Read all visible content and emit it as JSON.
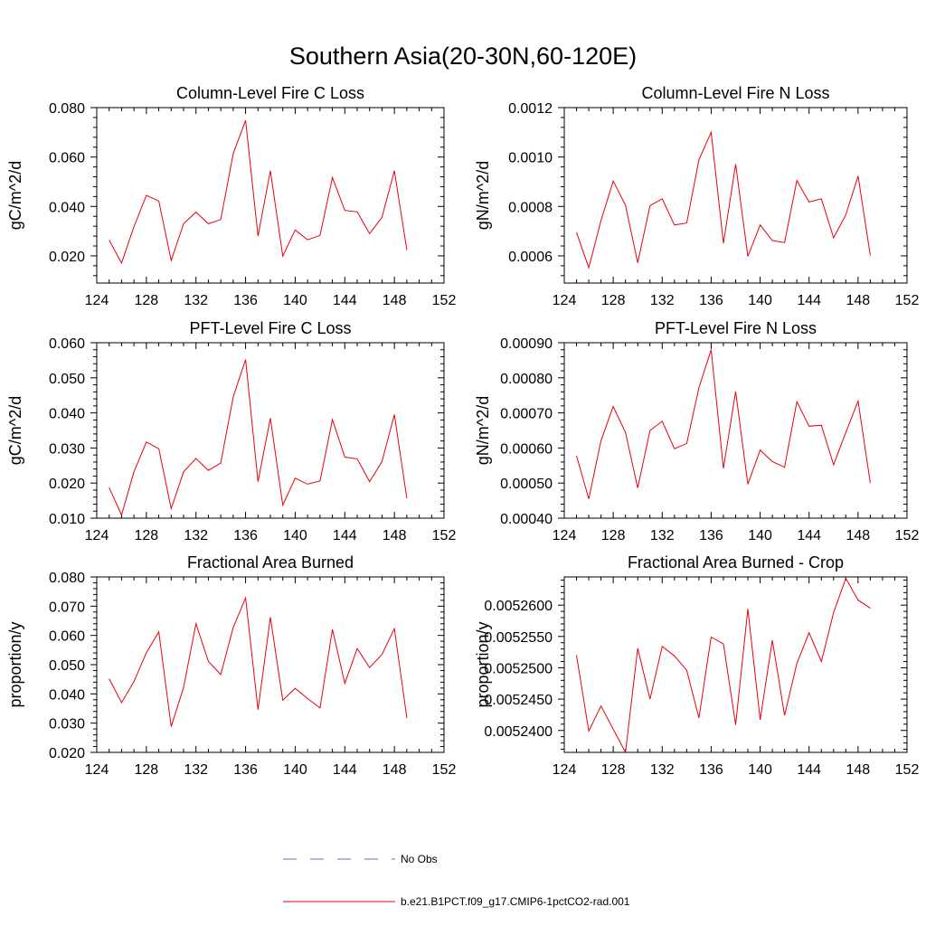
{
  "figure": {
    "title": "Southern Asia(20-30N,60-120E)"
  },
  "legend": {
    "placement": "bottom-center",
    "entries": [
      {
        "label": "No Obs",
        "color": "#6a6ad0",
        "dash": true
      },
      {
        "label": "b.e21.B1PCT.f09_g17.CMIP6-1pctCO2-rad.001",
        "color": "#e8000b",
        "dash": false
      }
    ]
  },
  "chart_data": [
    {
      "type": "line",
      "title": "Column-Level Fire C Loss",
      "xlabel": "",
      "ylabel": "gC/m^2/d",
      "xlim": [
        124,
        152
      ],
      "ylim": [
        0.009,
        0.08
      ],
      "xticks": [
        124,
        128,
        132,
        136,
        140,
        144,
        148,
        152
      ],
      "xtick_labels": [
        "124",
        "128",
        "132",
        "136",
        "140",
        "144",
        "148",
        "152"
      ],
      "yticks": [
        0.02,
        0.04,
        0.06,
        0.08
      ],
      "ytick_labels": [
        "0.020",
        "0.040",
        "0.060",
        "0.080"
      ],
      "yminor_step": 0.004,
      "x": [
        125,
        126,
        127,
        128,
        129,
        130,
        131,
        132,
        133,
        134,
        135,
        136,
        137,
        138,
        139,
        140,
        141,
        142,
        143,
        144,
        145,
        146,
        147,
        148,
        149
      ],
      "series": [
        {
          "name": "b.e21.B1PCT.f09_g17.CMIP6-1pctCO2-rad.001",
          "color": "#e8000b",
          "values": [
            0.0264,
            0.0171,
            0.0318,
            0.0445,
            0.0422,
            0.0181,
            0.033,
            0.0377,
            0.033,
            0.0347,
            0.0614,
            0.0748,
            0.028,
            0.0545,
            0.0199,
            0.0305,
            0.0265,
            0.0283,
            0.0517,
            0.0384,
            0.0378,
            0.029,
            0.0356,
            0.0545,
            0.0224
          ]
        }
      ]
    },
    {
      "type": "line",
      "title": "Column-Level Fire N Loss",
      "xlabel": "",
      "ylabel": "gN/m^2/d",
      "xlim": [
        124,
        152
      ],
      "ylim": [
        0.00049,
        0.0012
      ],
      "xticks": [
        124,
        128,
        132,
        136,
        140,
        144,
        148,
        152
      ],
      "xtick_labels": [
        "124",
        "128",
        "132",
        "136",
        "140",
        "144",
        "148",
        "152"
      ],
      "yticks": [
        0.0006,
        0.0008,
        0.001,
        0.0012
      ],
      "ytick_labels": [
        "0.0006",
        "0.0008",
        "0.0010",
        "0.0012"
      ],
      "yminor_step": 4e-05,
      "x": [
        125,
        126,
        127,
        128,
        129,
        130,
        131,
        132,
        133,
        134,
        135,
        136,
        137,
        138,
        139,
        140,
        141,
        142,
        143,
        144,
        145,
        146,
        147,
        148,
        149
      ],
      "series": [
        {
          "name": "b.e21.B1PCT.f09_g17.CMIP6-1pctCO2-rad.001",
          "color": "#e8000b",
          "values": [
            0.000695,
            0.000552,
            0.000743,
            0.000903,
            0.000805,
            0.000572,
            0.000803,
            0.000831,
            0.000725,
            0.000733,
            0.000989,
            0.0011,
            0.000651,
            0.000971,
            0.000598,
            0.000725,
            0.000662,
            0.000654,
            0.000905,
            0.000818,
            0.000831,
            0.000673,
            0.000766,
            0.000923,
            0.000602
          ]
        }
      ]
    },
    {
      "type": "line",
      "title": "PFT-Level Fire C Loss",
      "xlabel": "",
      "ylabel": "gC/m^2/d",
      "xlim": [
        124,
        152
      ],
      "ylim": [
        0.01,
        0.06
      ],
      "xticks": [
        124,
        128,
        132,
        136,
        140,
        144,
        148,
        152
      ],
      "xtick_labels": [
        "124",
        "128",
        "132",
        "136",
        "140",
        "144",
        "148",
        "152"
      ],
      "yticks": [
        0.01,
        0.02,
        0.03,
        0.04,
        0.05,
        0.06
      ],
      "ytick_labels": [
        "0.010",
        "0.020",
        "0.030",
        "0.040",
        "0.050",
        "0.060"
      ],
      "yminor_step": 0.002,
      "x": [
        125,
        126,
        127,
        128,
        129,
        130,
        131,
        132,
        133,
        134,
        135,
        136,
        137,
        138,
        139,
        140,
        141,
        142,
        143,
        144,
        145,
        146,
        147,
        148,
        149
      ],
      "series": [
        {
          "name": "b.e21.B1PCT.f09_g17.CMIP6-1pctCO2-rad.001",
          "color": "#e8000b",
          "values": [
            0.0187,
            0.0109,
            0.0232,
            0.0317,
            0.0298,
            0.0127,
            0.0232,
            0.027,
            0.0236,
            0.0257,
            0.0446,
            0.0552,
            0.0204,
            0.0385,
            0.0137,
            0.0214,
            0.0197,
            0.0206,
            0.0381,
            0.0274,
            0.0269,
            0.0204,
            0.0261,
            0.0395,
            0.0157
          ]
        }
      ]
    },
    {
      "type": "line",
      "title": "PFT-Level Fire N Loss",
      "xlabel": "",
      "ylabel": "gN/m^2/d",
      "xlim": [
        124,
        152
      ],
      "ylim": [
        0.0004,
        0.0009
      ],
      "xticks": [
        124,
        128,
        132,
        136,
        140,
        144,
        148,
        152
      ],
      "xtick_labels": [
        "124",
        "128",
        "132",
        "136",
        "140",
        "144",
        "148",
        "152"
      ],
      "yticks": [
        0.0004,
        0.0005,
        0.0006,
        0.0007,
        0.0008,
        0.0009
      ],
      "ytick_labels": [
        "0.00040",
        "0.00050",
        "0.00060",
        "0.00070",
        "0.00080",
        "0.00090"
      ],
      "yminor_step": 2e-05,
      "x": [
        125,
        126,
        127,
        128,
        129,
        130,
        131,
        132,
        133,
        134,
        135,
        136,
        137,
        138,
        139,
        140,
        141,
        142,
        143,
        144,
        145,
        146,
        147,
        148,
        149
      ],
      "series": [
        {
          "name": "b.e21.B1PCT.f09_g17.CMIP6-1pctCO2-rad.001",
          "color": "#e8000b",
          "values": [
            0.000578,
            0.000455,
            0.000621,
            0.000718,
            0.000644,
            0.000486,
            0.00065,
            0.000676,
            0.000598,
            0.000613,
            0.000772,
            0.00088,
            0.000542,
            0.000761,
            0.000497,
            0.000594,
            0.000561,
            0.000545,
            0.000732,
            0.000662,
            0.000665,
            0.000552,
            0.000644,
            0.000734,
            0.0005
          ]
        }
      ]
    },
    {
      "type": "line",
      "title": "Fractional Area Burned",
      "xlabel": "",
      "ylabel": "proportion/y",
      "xlim": [
        124,
        152
      ],
      "ylim": [
        0.02,
        0.08
      ],
      "xticks": [
        124,
        128,
        132,
        136,
        140,
        144,
        148,
        152
      ],
      "xtick_labels": [
        "124",
        "128",
        "132",
        "136",
        "140",
        "144",
        "148",
        "152"
      ],
      "yticks": [
        0.02,
        0.03,
        0.04,
        0.05,
        0.06,
        0.07,
        0.08
      ],
      "ytick_labels": [
        "0.020",
        "0.030",
        "0.040",
        "0.050",
        "0.060",
        "0.070",
        "0.080"
      ],
      "yminor_step": 0.002,
      "x": [
        125,
        126,
        127,
        128,
        129,
        130,
        131,
        132,
        133,
        134,
        135,
        136,
        137,
        138,
        139,
        140,
        141,
        142,
        143,
        144,
        145,
        146,
        147,
        148,
        149
      ],
      "series": [
        {
          "name": "b.e21.B1PCT.f09_g17.CMIP6-1pctCO2-rad.001",
          "color": "#e8000b",
          "values": [
            0.0452,
            0.037,
            0.0442,
            0.0541,
            0.0612,
            0.0288,
            0.0422,
            0.064,
            0.0511,
            0.0466,
            0.0627,
            0.0728,
            0.0346,
            0.0662,
            0.0378,
            0.0419,
            0.0384,
            0.0352,
            0.0621,
            0.0436,
            0.0555,
            0.049,
            0.0535,
            0.0623,
            0.0318
          ]
        }
      ]
    },
    {
      "type": "line",
      "title": "Fractional Area Burned - Crop",
      "xlabel": "",
      "ylabel": "proportion/y",
      "xlim": [
        124,
        152
      ],
      "ylim": [
        0.0052365,
        0.0052645
      ],
      "xticks": [
        124,
        128,
        132,
        136,
        140,
        144,
        148,
        152
      ],
      "xtick_labels": [
        "124",
        "128",
        "132",
        "136",
        "140",
        "144",
        "148",
        "152"
      ],
      "yticks": [
        0.00524,
        0.005245,
        0.00525,
        0.005255,
        0.00526
      ],
      "ytick_labels": [
        "0.0052400",
        "0.0052450",
        "0.0052500",
        "0.0052550",
        "0.0052600"
      ],
      "yminor_step": 1e-06,
      "x": [
        125,
        126,
        127,
        128,
        129,
        130,
        131,
        132,
        133,
        134,
        135,
        136,
        137,
        138,
        139,
        140,
        141,
        142,
        143,
        144,
        145,
        146,
        147,
        148,
        149
      ],
      "series": [
        {
          "name": "b.e21.B1PCT.f09_g17.CMIP6-1pctCO2-rad.001",
          "color": "#e8000b",
          "values": [
            0.005252,
            0.0052399,
            0.0052439,
            0.0052402,
            0.0052365,
            0.0052531,
            0.005245,
            0.0052534,
            0.0052519,
            0.0052496,
            0.005242,
            0.0052549,
            0.0052538,
            0.0052409,
            0.0052594,
            0.0052417,
            0.0052544,
            0.0052424,
            0.0052507,
            0.0052556,
            0.005251,
            0.0052588,
            0.0052643,
            0.0052608,
            0.0052595
          ]
        }
      ]
    }
  ]
}
